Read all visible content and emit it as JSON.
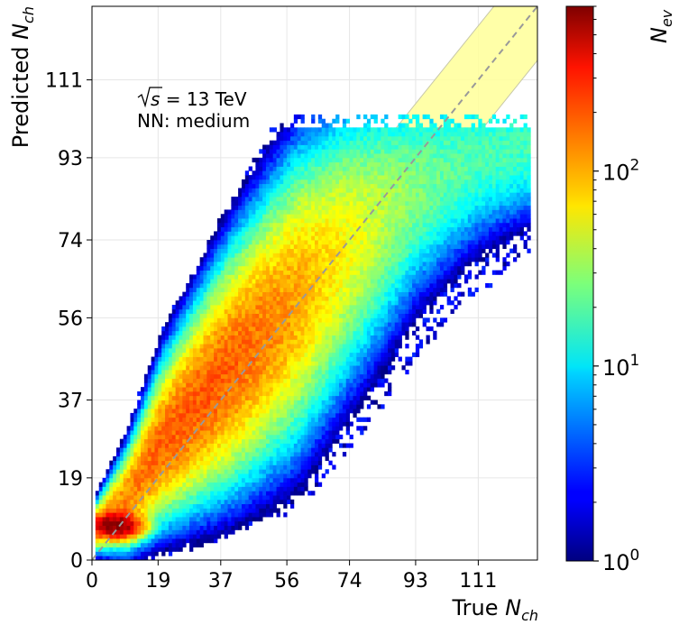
{
  "chart_data": {
    "type": "heatmap",
    "title": "",
    "xlabel": "True N_ch",
    "ylabel": "Predicted N_ch",
    "colorbar_label": "N_ev",
    "xlim": [
      0,
      128
    ],
    "ylim": [
      0,
      128
    ],
    "x_ticks": [
      0,
      19,
      37,
      56,
      74,
      93,
      111
    ],
    "y_ticks": [
      0,
      19,
      37,
      56,
      74,
      93,
      111
    ],
    "grid": true,
    "colorbar": {
      "scale": "log",
      "range": [
        1,
        700
      ],
      "colormap": "jet",
      "ticks": [
        {
          "value": 1,
          "base": "10",
          "exp": "0"
        },
        {
          "value": 10,
          "base": "10",
          "exp": "1"
        },
        {
          "value": 100,
          "base": "10",
          "exp": "2"
        }
      ]
    },
    "annotations": [
      {
        "kind": "sqrt_s",
        "label": "s = 13 TeV",
        "radicand": "s",
        "rest": " = 13 TeV"
      },
      {
        "kind": "text",
        "label": "NN: medium"
      }
    ],
    "diagonal": {
      "style": "dashed",
      "color": "#999999",
      "from": [
        0,
        0
      ],
      "to": [
        128,
        128
      ]
    },
    "band": {
      "color": "#ffff99",
      "half_width": 12.5,
      "x_start": 83,
      "x_end": 128
    },
    "distribution": {
      "description": "2D histogram of predicted vs true charged multiplicity",
      "ridge": [
        [
          1,
          7.5
        ],
        [
          10,
          14
        ],
        [
          20,
          27
        ],
        [
          37,
          42
        ],
        [
          56,
          58
        ],
        [
          74,
          73
        ],
        [
          93,
          86
        ],
        [
          111,
          93
        ],
        [
          124,
          95
        ]
      ],
      "width": [
        [
          1,
          2.5
        ],
        [
          20,
          8
        ],
        [
          40,
          12
        ],
        [
          60,
          15
        ],
        [
          80,
          14
        ],
        [
          100,
          11
        ],
        [
          124,
          8
        ]
      ],
      "peak": {
        "x": 7,
        "y": 8,
        "value": 650
      },
      "x_range": [
        1,
        126
      ],
      "y_max": 100
    }
  }
}
